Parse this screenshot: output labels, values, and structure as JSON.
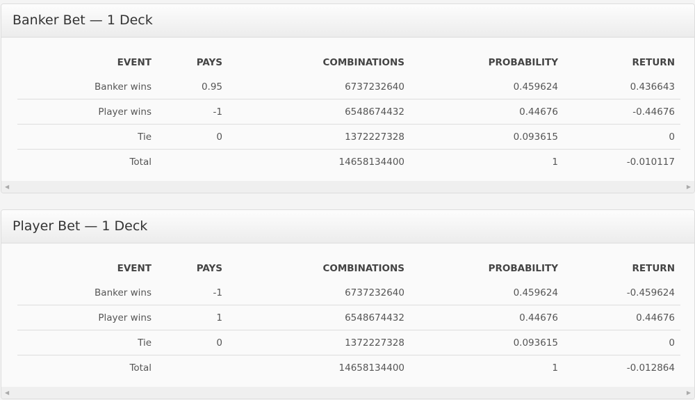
{
  "columns": [
    "EVENT",
    "PAYS",
    "COMBINATIONS",
    "PROBABILITY",
    "RETURN"
  ],
  "panels": [
    {
      "title": "Banker Bet — 1 Deck",
      "rows": [
        [
          "Banker wins",
          "0.95",
          "6737232640",
          "0.459624",
          "0.436643"
        ],
        [
          "Player wins",
          "-1",
          "6548674432",
          "0.44676",
          "-0.44676"
        ],
        [
          "Tie",
          "0",
          "1372227328",
          "0.093615",
          "0"
        ],
        [
          "Total",
          "",
          "14658134400",
          "1",
          "-0.010117"
        ]
      ]
    },
    {
      "title": "Player Bet — 1 Deck",
      "rows": [
        [
          "Banker wins",
          "-1",
          "6737232640",
          "0.459624",
          "-0.459624"
        ],
        [
          "Player wins",
          "1",
          "6548674432",
          "0.44676",
          "0.44676"
        ],
        [
          "Tie",
          "0",
          "1372227328",
          "0.093615",
          "0"
        ],
        [
          "Total",
          "",
          "14658134400",
          "1",
          "-0.012864"
        ]
      ]
    }
  ]
}
